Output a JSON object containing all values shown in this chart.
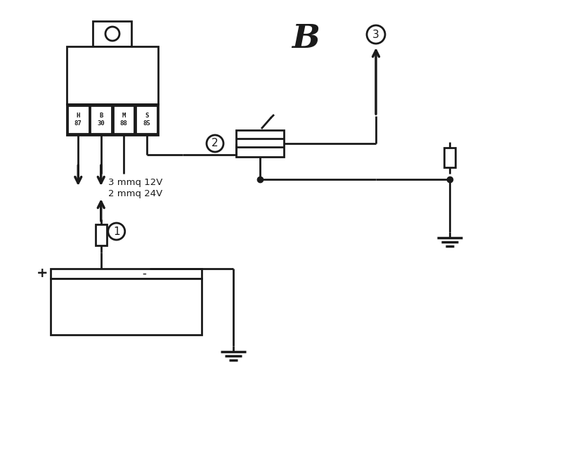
{
  "title": "B",
  "background_color": "#ffffff",
  "line_color": "#1a1a1a",
  "label_1": "1",
  "label_2": "2",
  "label_3": "3",
  "wire_text_1": "3 mmq 12V",
  "wire_text_2": "2 mmq 24V",
  "relay_labels": [
    "H\n87",
    "B\n30",
    "M\n88",
    "S\n85"
  ],
  "plus_label": "+",
  "minus_label": "-",
  "lw": 2.0
}
